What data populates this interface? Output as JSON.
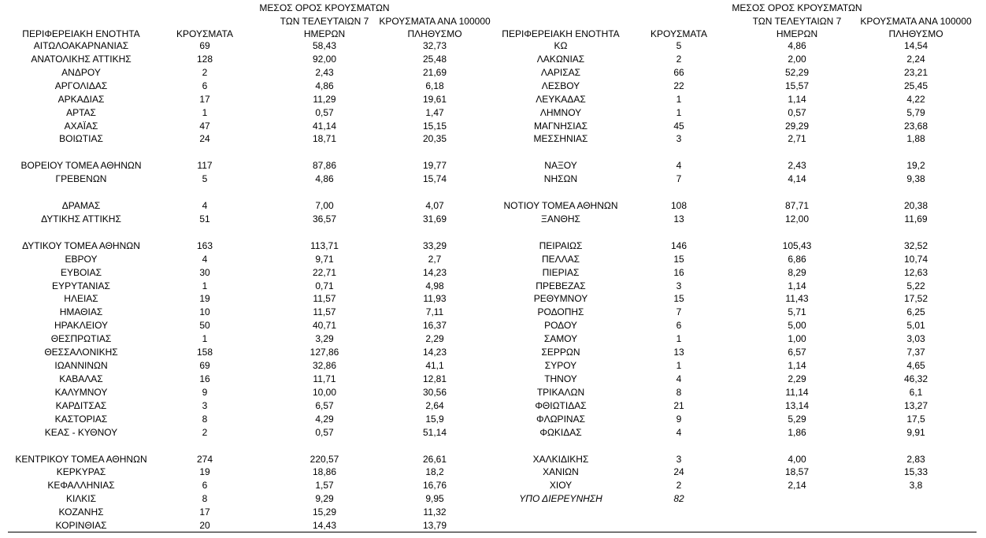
{
  "left": {
    "header": [
      [
        "ΠΕΡΙΦΕΡΕΙΑΚΗ ΕΝΟΤΗΤΑ"
      ],
      [
        "ΚΡΟΥΣΜΑΤΑ"
      ],
      [
        "ΜΕΣΟΣ ΟΡΟΣ ΚΡΟΥΣΜΑΤΩΝ",
        "ΤΩΝ ΤΕΛΕΥΤΑΙΩΝ 7",
        "ΗΜΕΡΩΝ"
      ],
      [
        "ΚΡΟΥΣΜΑΤΑ ΑΝΑ 100000",
        "ΠΛΗΘΥΣΜΟ"
      ]
    ],
    "groups": [
      [
        [
          "ΑΙΤΩΛΟΑΚΑΡΝΑΝΙΑΣ",
          "69",
          "58,43",
          "32,73"
        ],
        [
          "ΑΝΑΤΟΛΙΚΗΣ ΑΤΤΙΚΗΣ",
          "128",
          "92,00",
          "25,48"
        ],
        [
          "ΑΝΔΡΟΥ",
          "2",
          "2,43",
          "21,69"
        ],
        [
          "ΑΡΓΟΛΙΔΑΣ",
          "6",
          "4,86",
          "6,18"
        ],
        [
          "ΑΡΚΑΔΙΑΣ",
          "17",
          "11,29",
          "19,61"
        ],
        [
          "ΑΡΤΑΣ",
          "1",
          "0,57",
          "1,47"
        ],
        [
          "ΑΧΑΪΑΣ",
          "47",
          "41,14",
          "15,15"
        ],
        [
          "ΒΟΙΩΤΙΑΣ",
          "24",
          "18,71",
          "20,35"
        ]
      ],
      [
        [
          "ΒΟΡΕΙΟΥ ΤΟΜΕΑ ΑΘΗΝΩΝ",
          "117",
          "87,86",
          "19,77"
        ],
        [
          "ΓΡΕΒΕΝΩΝ",
          "5",
          "4,86",
          "15,74"
        ]
      ],
      [
        [
          "ΔΡΑΜΑΣ",
          "4",
          "7,00",
          "4,07"
        ],
        [
          "ΔΥΤΙΚΗΣ ΑΤΤΙΚΗΣ",
          "51",
          "36,57",
          "31,69"
        ]
      ],
      [
        [
          "ΔΥΤΙΚΟΥ ΤΟΜΕΑ ΑΘΗΝΩΝ",
          "163",
          "113,71",
          "33,29"
        ],
        [
          "ΕΒΡΟΥ",
          "4",
          "9,71",
          "2,7"
        ],
        [
          "ΕΥΒΟΙΑΣ",
          "30",
          "22,71",
          "14,23"
        ],
        [
          "ΕΥΡΥΤΑΝΙΑΣ",
          "1",
          "0,71",
          "4,98"
        ],
        [
          "ΗΛΕΙΑΣ",
          "19",
          "11,57",
          "11,93"
        ],
        [
          "ΗΜΑΘΙΑΣ",
          "10",
          "11,57",
          "7,11"
        ],
        [
          "ΗΡΑΚΛΕΙΟΥ",
          "50",
          "40,71",
          "16,37"
        ],
        [
          "ΘΕΣΠΡΩΤΙΑΣ",
          "1",
          "3,29",
          "2,29"
        ],
        [
          "ΘΕΣΣΑΛΟΝΙΚΗΣ",
          "158",
          "127,86",
          "14,23"
        ],
        [
          "ΙΩΑΝΝΙΝΩΝ",
          "69",
          "32,86",
          "41,1"
        ],
        [
          "ΚΑΒΑΛΑΣ",
          "16",
          "11,71",
          "12,81"
        ],
        [
          "ΚΑΛΥΜΝΟΥ",
          "9",
          "10,00",
          "30,56"
        ],
        [
          "ΚΑΡΔΙΤΣΑΣ",
          "3",
          "6,57",
          "2,64"
        ],
        [
          "ΚΑΣΤΟΡΙΑΣ",
          "8",
          "4,29",
          "15,9"
        ],
        [
          "ΚΕΑΣ - ΚΥΘΝΟΥ",
          "2",
          "0,57",
          "51,14"
        ]
      ],
      [
        [
          "ΚΕΝΤΡΙΚΟΥ ΤΟΜΕΑ ΑΘΗΝΩΝ",
          "274",
          "220,57",
          "26,61"
        ],
        [
          "ΚΕΡΚΥΡΑΣ",
          "19",
          "18,86",
          "18,2"
        ],
        [
          "ΚΕΦΑΛΛΗΝΙΑΣ",
          "6",
          "1,57",
          "16,76"
        ],
        [
          "ΚΙΛΚΙΣ",
          "8",
          "9,29",
          "9,95"
        ],
        [
          "ΚΟΖΑΝΗΣ",
          "17",
          "15,29",
          "11,32"
        ],
        [
          "ΚΟΡΙΝΘΙΑΣ",
          "20",
          "14,43",
          "13,79"
        ]
      ]
    ]
  },
  "right": {
    "header": [
      [
        "ΠΕΡΙΦΕΡΕΙΑΚΗ ΕΝΟΤΗΤΑ"
      ],
      [
        "ΚΡΟΥΣΜΑΤΑ"
      ],
      [
        "ΜΕΣΟΣ ΟΡΟΣ ΚΡΟΥΣΜΑΤΩΝ",
        "ΤΩΝ ΤΕΛΕΥΤΑΙΩΝ 7",
        "ΗΜΕΡΩΝ"
      ],
      [
        "ΚΡΟΥΣΜΑΤΑ ΑΝΑ 100000",
        "ΠΛΗΘΥΣΜΟ"
      ]
    ],
    "groups": [
      [
        [
          "ΚΩ",
          "5",
          "4,86",
          "14,54"
        ],
        [
          "ΛΑΚΩΝΙΑΣ",
          "2",
          "2,00",
          "2,24"
        ],
        [
          "ΛΑΡΙΣΑΣ",
          "66",
          "52,29",
          "23,21"
        ],
        [
          "ΛΕΣΒΟΥ",
          "22",
          "15,57",
          "25,45"
        ],
        [
          "ΛΕΥΚΑΔΑΣ",
          "1",
          "1,14",
          "4,22"
        ],
        [
          "ΛΗΜΝΟΥ",
          "1",
          "0,57",
          "5,79"
        ],
        [
          "ΜΑΓΝΗΣΙΑΣ",
          "45",
          "29,29",
          "23,68"
        ],
        [
          "ΜΕΣΣΗΝΙΑΣ",
          "3",
          "2,71",
          "1,88"
        ]
      ],
      [
        [
          "ΝΑΞΟΥ",
          "4",
          "2,43",
          "19,2"
        ],
        [
          "ΝΗΣΩΝ",
          "7",
          "4,14",
          "9,38"
        ]
      ],
      [
        [
          "ΝΟΤΙΟΥ ΤΟΜΕΑ ΑΘΗΝΩΝ",
          "108",
          "87,71",
          "20,38"
        ],
        [
          "ΞΑΝΘΗΣ",
          "13",
          "12,00",
          "11,69"
        ]
      ],
      [
        [
          "ΠΕΙΡΑΙΩΣ",
          "146",
          "105,43",
          "32,52"
        ],
        [
          "ΠΕΛΛΑΣ",
          "15",
          "6,86",
          "10,74"
        ],
        [
          "ΠΙΕΡΙΑΣ",
          "16",
          "8,29",
          "12,63"
        ],
        [
          "ΠΡΕΒΕΖΑΣ",
          "3",
          "1,14",
          "5,22"
        ],
        [
          "ΡΕΘΥΜΝΟΥ",
          "15",
          "11,43",
          "17,52"
        ],
        [
          "ΡΟΔΟΠΗΣ",
          "7",
          "5,71",
          "6,25"
        ],
        [
          "ΡΟΔΟΥ",
          "6",
          "5,00",
          "5,01"
        ],
        [
          "ΣΑΜΟΥ",
          "1",
          "1,00",
          "3,03"
        ],
        [
          "ΣΕΡΡΩΝ",
          "13",
          "6,57",
          "7,37"
        ],
        [
          "ΣΥΡΟΥ",
          "1",
          "1,14",
          "4,65"
        ],
        [
          "ΤΗΝΟΥ",
          "4",
          "2,29",
          "46,32"
        ],
        [
          "ΤΡΙΚΑΛΩΝ",
          "8",
          "11,14",
          "6,1"
        ],
        [
          "ΦΘΙΩΤΙΔΑΣ",
          "21",
          "13,14",
          "13,27"
        ],
        [
          "ΦΛΩΡΙΝΑΣ",
          "9",
          "5,29",
          "17,5"
        ],
        [
          "ΦΩΚΙΔΑΣ",
          "4",
          "1,86",
          "9,91"
        ]
      ],
      [
        [
          "ΧΑΛΚΙΔΙΚΗΣ",
          "3",
          "4,00",
          "2,83"
        ],
        [
          "ΧΑΝΙΩΝ",
          "24",
          "18,57",
          "15,33"
        ],
        [
          "ΧΙΟΥ",
          "2",
          "2,14",
          "3,8"
        ]
      ]
    ],
    "note": {
      "label": "ΥΠΟ ΔΙΕΡΕΥΝΗΣΗ",
      "value": "82"
    }
  }
}
